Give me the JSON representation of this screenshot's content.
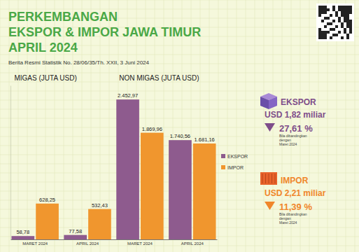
{
  "header": {
    "title": [
      "PERKEMBANGAN",
      "EKSPOR & IMPOR JAWA TIMUR",
      "APRIL 2024"
    ],
    "subtitle": "Berita Resmi Statistik No. 28/06/35/Th. XXII, 3 Juni 2024"
  },
  "chart_data": {
    "type": "bar",
    "annotations": [
      "MIGAS (JUTA USD)",
      "NON MIGAS (JUTA USD)"
    ],
    "categories": [
      "MARET 2024",
      "APRIL 2024",
      "MARET 2024",
      "APRIL 2024"
    ],
    "series": [
      {
        "name": "EKSPOR",
        "color": "#8e5b8e",
        "values": [
          58.78,
          77.58,
          2452.97,
          1740.56
        ],
        "value_labels": [
          "58,78",
          "77,58",
          "2.452,97",
          "1.740,56"
        ]
      },
      {
        "name": "IMPOR",
        "color": "#f0962e",
        "values": [
          628.25,
          532.43,
          1869.96,
          1681.16
        ],
        "value_labels": [
          "628,25",
          "532,43",
          "1.869,96",
          "1.681,16"
        ]
      }
    ],
    "ylim": [
      0,
      2700
    ],
    "tick_labels": "x",
    "data_labels": true,
    "legend": "right"
  },
  "summary": [
    {
      "label": "EKSPOR",
      "amount": "USD 1,82 miliar",
      "change": "27,61 %",
      "note": [
        "Bila dibandingkan",
        "dengan",
        "Maret 2024"
      ],
      "color": "#7e4d8a"
    },
    {
      "label": "IMPOR",
      "amount": "USD 2,21 miliar",
      "change": "11,39 %",
      "note": [
        "Bila dibandingkan",
        "dengan",
        "Maret 2024"
      ],
      "color": "#f0862a"
    }
  ]
}
